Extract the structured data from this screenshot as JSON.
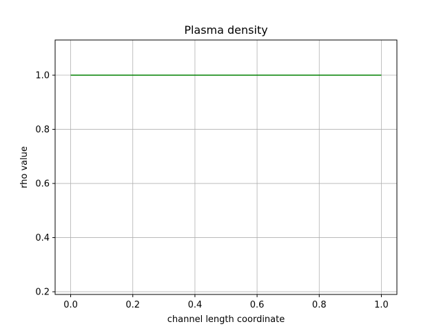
{
  "chart_data": {
    "type": "line",
    "title": "Plasma density",
    "xlabel": "channel length coordinate",
    "ylabel": "rho value",
    "xlim": [
      -0.05,
      1.05
    ],
    "ylim": [
      0.19,
      1.13
    ],
    "x_ticks": [
      0.0,
      0.2,
      0.4,
      0.6,
      0.8,
      1.0
    ],
    "x_tick_labels": [
      "0.0",
      "0.2",
      "0.4",
      "0.6",
      "0.8",
      "1.0"
    ],
    "y_ticks": [
      0.2,
      0.4,
      0.6,
      0.8,
      1.0
    ],
    "y_tick_labels": [
      "0.2",
      "0.4",
      "0.6",
      "0.8",
      "1.0"
    ],
    "grid": true,
    "series": [
      {
        "color": "#008000",
        "x": [
          0.0,
          0.2,
          0.4,
          0.6,
          0.8,
          1.0
        ],
        "y": [
          1.0,
          1.0,
          1.0,
          1.0,
          1.0,
          1.0
        ]
      }
    ]
  }
}
